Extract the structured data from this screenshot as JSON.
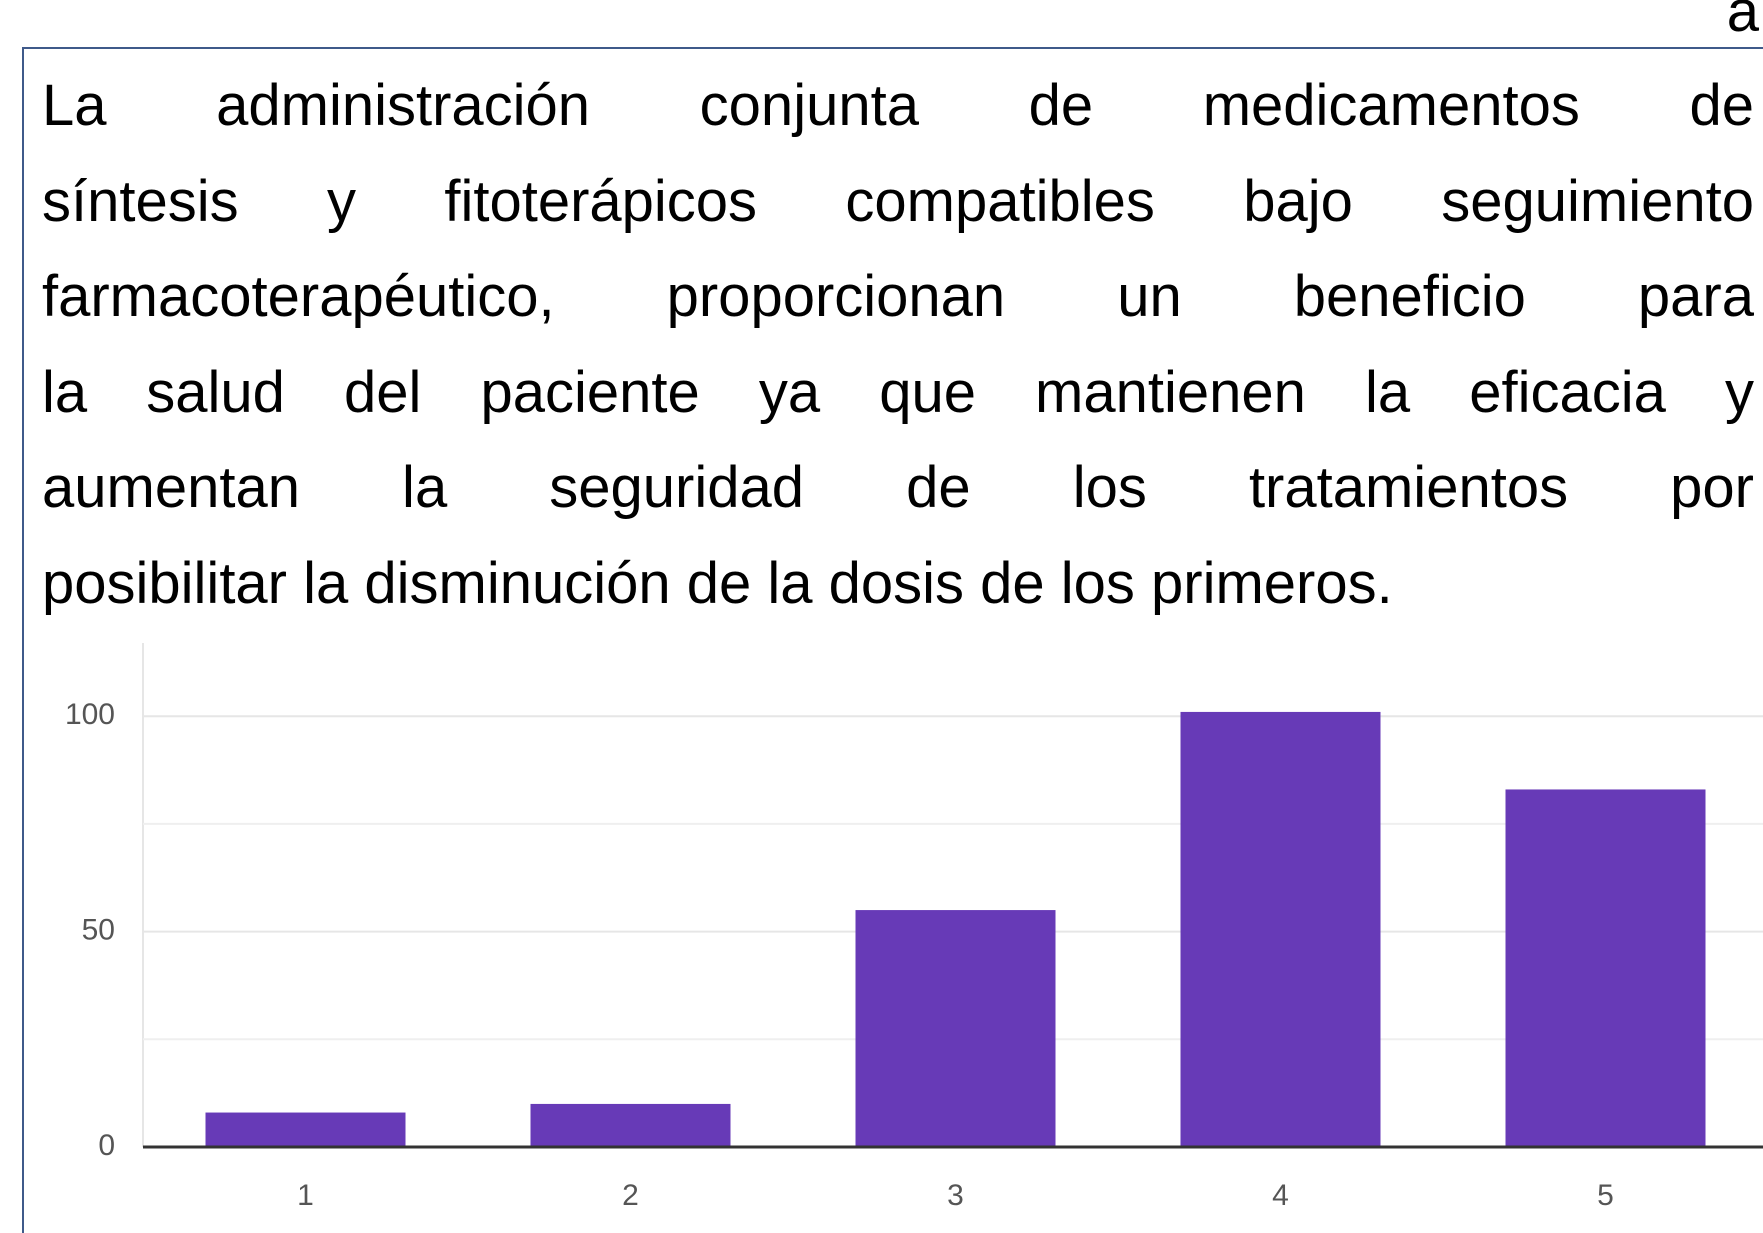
{
  "corner_text": "a",
  "chart_data": {
    "type": "bar",
    "title_lines": [
      "La administración conjunta de medicamentos de",
      "síntesis y fitoterápicos compatibles bajo seguimiento",
      "farmacoterapéutico, proporcionan un beneficio para",
      "la salud del paciente ya que mantienen la eficacia y",
      "aumentan la seguridad de los tratamientos por",
      "posibilitar la disminución de la dosis de los primeros."
    ],
    "categories": [
      "1",
      "2",
      "3",
      "4",
      "5"
    ],
    "values": [
      8,
      10,
      55,
      101,
      83
    ],
    "color": "#673ab7",
    "ylim": [
      0,
      117
    ],
    "yticks": [
      0,
      50,
      100
    ],
    "minor_yticks": [
      25,
      75
    ],
    "grid": true
  }
}
